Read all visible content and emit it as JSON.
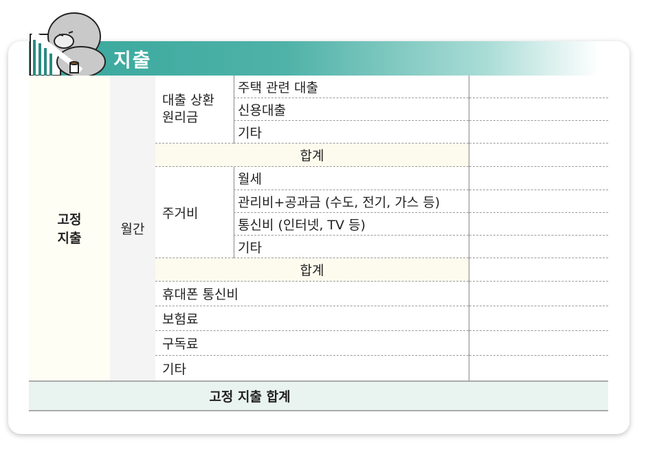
{
  "section_title": "지출",
  "category": "고정\n지출",
  "period": "월간",
  "groups": {
    "loan": {
      "label": "대출 상환\n원리금",
      "items": [
        "주택 관련 대출",
        "신용대출",
        "기타"
      ],
      "sum_label": "합계"
    },
    "housing": {
      "label": "주거비",
      "items": [
        "월세",
        "관리비+공과금 (수도, 전기, 가스 등)",
        "통신비 (인터넷, TV 등)",
        "기타"
      ],
      "sum_label": "합계"
    }
  },
  "single_items": [
    "휴대폰 통신비",
    "보험료",
    "구독료",
    "기타"
  ],
  "total_label": "고정 지출 합계",
  "colors": {
    "accent": "#37a79c",
    "cream": "#fffef4",
    "total_bg": "#e9f3f0"
  }
}
